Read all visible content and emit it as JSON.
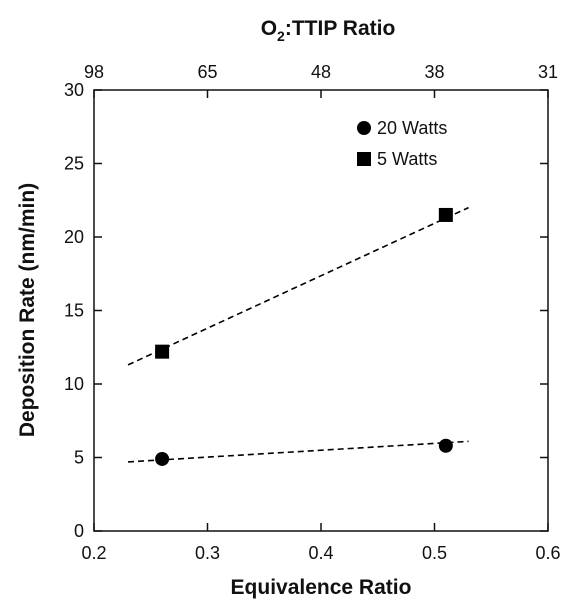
{
  "chart_data": {
    "type": "scatter",
    "title": "",
    "xlabel": "Equivalence Ratio",
    "ylabel": "Deposition Rate (nm/min)",
    "top_axis_label": {
      "main": "O",
      "sub": "2",
      "rest": ":TTIP Ratio"
    },
    "xlim": [
      0.2,
      0.6
    ],
    "ylim": [
      0,
      30
    ],
    "x_ticks": [
      0.2,
      0.3,
      0.4,
      0.5,
      0.6
    ],
    "x_tick_labels": [
      "0.2",
      "0.3",
      "0.4",
      "0.5",
      "0.6"
    ],
    "y_ticks": [
      0,
      5,
      10,
      15,
      20,
      25,
      30
    ],
    "y_tick_labels": [
      "0",
      "5",
      "10",
      "15",
      "20",
      "25",
      "30"
    ],
    "top_ticks": [
      {
        "at_equivalence_ratio": 0.2,
        "label": "98"
      },
      {
        "at_equivalence_ratio": 0.3,
        "label": "65"
      },
      {
        "at_equivalence_ratio": 0.4,
        "label": "48"
      },
      {
        "at_equivalence_ratio": 0.5,
        "label": "38"
      },
      {
        "at_equivalence_ratio": 0.6,
        "label": "31"
      }
    ],
    "grid": false,
    "legend_position": "top-right",
    "series": [
      {
        "name": "20 Watts",
        "marker": "circle",
        "color": "#000000",
        "points": [
          {
            "x": 0.26,
            "y": 4.9
          },
          {
            "x": 0.51,
            "y": 5.8
          }
        ],
        "fit": {
          "x": [
            0.23,
            0.53
          ],
          "y": [
            4.7,
            6.1
          ],
          "style": "dashed"
        }
      },
      {
        "name": "5 Watts",
        "marker": "square",
        "color": "#000000",
        "points": [
          {
            "x": 0.26,
            "y": 12.2
          },
          {
            "x": 0.51,
            "y": 21.5
          }
        ],
        "fit": {
          "x": [
            0.23,
            0.53
          ],
          "y": [
            11.3,
            22.0
          ],
          "style": "dashed"
        }
      }
    ]
  }
}
